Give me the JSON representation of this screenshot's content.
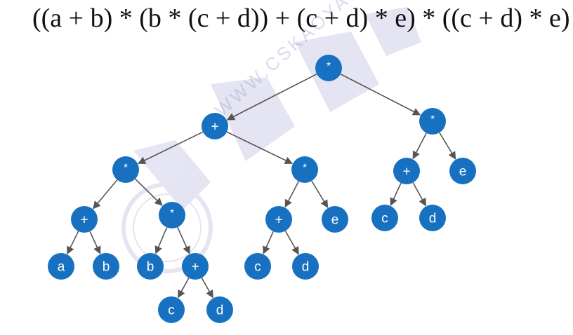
{
  "expression": "((a + b) * (b * (c + d)) + (c + d) * e) * ((c + d) * e)",
  "watermark": {
    "text": "WWW.CSKAOYAN.COM",
    "logo_text": "王道论坛"
  },
  "colors": {
    "node_fill": "#1771c0",
    "node_text": "#ffffff",
    "edge": "#555555",
    "watermark": "#b4b4dc"
  },
  "tree": {
    "label": "*",
    "children": [
      {
        "label": "+",
        "children": [
          {
            "label": "*",
            "children": [
              {
                "label": "+",
                "children": [
                  {
                    "label": "a"
                  },
                  {
                    "label": "b"
                  }
                ]
              },
              {
                "label": "*",
                "children": [
                  {
                    "label": "b"
                  },
                  {
                    "label": "+",
                    "children": [
                      {
                        "label": "c"
                      },
                      {
                        "label": "d"
                      }
                    ]
                  }
                ]
              }
            ]
          },
          {
            "label": "*",
            "children": [
              {
                "label": "+",
                "children": [
                  {
                    "label": "c"
                  },
                  {
                    "label": "d"
                  }
                ]
              },
              {
                "label": "e"
              }
            ]
          }
        ]
      },
      {
        "label": "*",
        "children": [
          {
            "label": "+",
            "children": [
              {
                "label": "c"
              },
              {
                "label": "d"
              }
            ]
          },
          {
            "label": "e"
          }
        ]
      }
    ]
  }
}
